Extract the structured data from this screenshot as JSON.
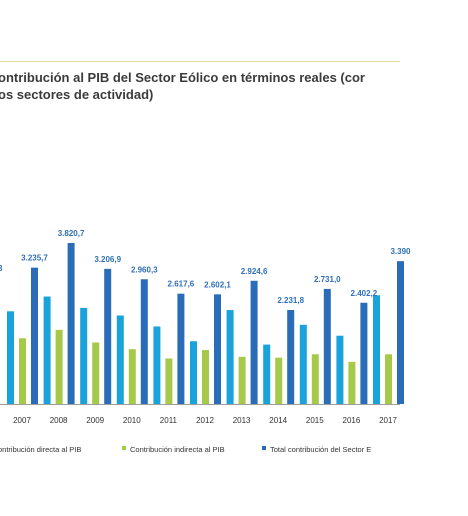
{
  "title_lines": [
    "ontribución al PIB del Sector Eólico en términos reales (cor",
    "os sectores de actividad)"
  ],
  "colors": {
    "direct": "#1aa3db",
    "indirect": "#a7c94a",
    "total": "#2a6cb7",
    "label": "#2f6fb5",
    "axis": "#9e9e9e",
    "rule": "#e3df9a"
  },
  "chart_data": {
    "type": "bar",
    "categories": [
      "2007",
      "2008",
      "2009",
      "2010",
      "2011",
      "2012",
      "2013",
      "2014",
      "2015",
      "2016",
      "2017"
    ],
    "series": [
      {
        "name": "ontribución directa al PIB",
        "key": "direct",
        "values": [
          2200,
          2550,
          2280,
          2100,
          1840,
          1490,
          2230,
          1410,
          1880,
          1620,
          2580
        ]
      },
      {
        "name": "Contribución indirecta al PIB",
        "key": "indirect",
        "values": [
          1560,
          1760,
          1460,
          1300,
          1080,
          1280,
          1120,
          1100,
          1180,
          1000,
          1180
        ]
      },
      {
        "name": "Total contribución del Sector E",
        "key": "total",
        "values": [
          3235.7,
          3820.7,
          3206.9,
          2960.3,
          2617.6,
          2602.1,
          2924.6,
          2231.8,
          2731.0,
          2402.2,
          3390
        ]
      }
    ],
    "data_labels": [
      "3.235,7",
      "3.820,7",
      "3.206,9",
      "2.960,3",
      "2.617,6",
      "2.602,1",
      "2.924,6",
      "2.231,8",
      "2.731,0",
      "2.402,2",
      "3.390"
    ],
    "partial_labels": {
      "before_2007": "3"
    },
    "ylim": [
      0,
      3820.7
    ],
    "grid": false,
    "legend_position": "bottom"
  }
}
